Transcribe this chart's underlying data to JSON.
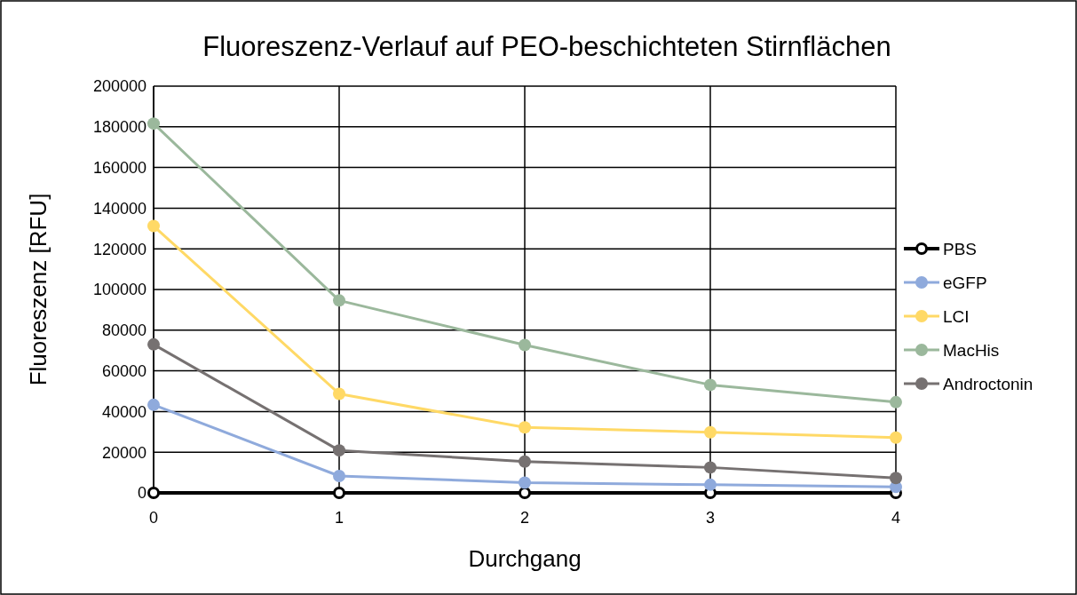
{
  "chart_data": {
    "type": "line",
    "title": "Fluoreszenz-Verlauf auf PEO-beschichteten Stirnflächen",
    "xlabel": "Durchgang",
    "ylabel": "Fluoreszenz [RFU]",
    "x": [
      0,
      1,
      2,
      3,
      4
    ],
    "xlim": [
      0,
      4
    ],
    "xticks": [
      0,
      1,
      2,
      3,
      4
    ],
    "ylim": [
      0,
      200000
    ],
    "yticks": [
      0,
      20000,
      40000,
      60000,
      80000,
      100000,
      120000,
      140000,
      160000,
      180000,
      200000
    ],
    "grid": true,
    "legend": "right",
    "marker": "circle",
    "line_style": "solid",
    "series": [
      {
        "name": "PBS",
        "color": "#000000",
        "values": [
          0,
          0,
          0,
          0,
          0
        ]
      },
      {
        "name": "eGFP",
        "color": "#8faadc",
        "values": [
          43300,
          8300,
          5000,
          4000,
          2900
        ]
      },
      {
        "name": "LCI",
        "color": "#ffd966",
        "values": [
          131200,
          48700,
          32200,
          29800,
          27200
        ]
      },
      {
        "name": "MacHis",
        "color": "#9bb89c",
        "values": [
          181600,
          94600,
          72700,
          53100,
          44600
        ]
      },
      {
        "name": "Androctonin",
        "color": "#767171",
        "values": [
          73000,
          20900,
          15400,
          12500,
          7300
        ]
      }
    ]
  }
}
